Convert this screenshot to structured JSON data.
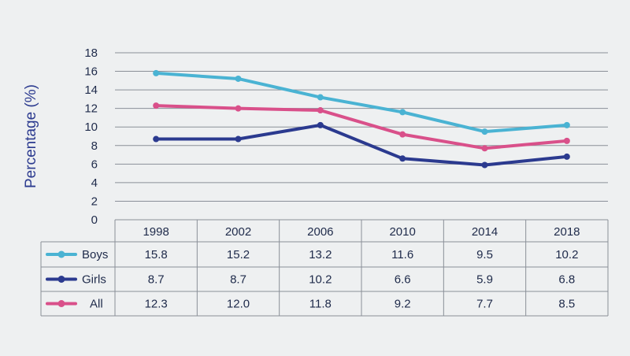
{
  "chart_data": {
    "type": "line",
    "ylabel": "Percentage (%)",
    "ylim": [
      0,
      18
    ],
    "yticks": [
      0,
      2,
      4,
      6,
      8,
      10,
      12,
      14,
      16,
      18
    ],
    "grid": true,
    "categories": [
      "1998",
      "2002",
      "2006",
      "2010",
      "2014",
      "2018"
    ],
    "series": [
      {
        "name": "Boys",
        "color": "#4ab3d3",
        "values": [
          15.8,
          15.2,
          13.2,
          11.6,
          9.5,
          10.2
        ]
      },
      {
        "name": "Girls",
        "color": "#2b3a8f",
        "values": [
          8.7,
          8.7,
          10.2,
          6.6,
          5.9,
          6.8
        ]
      },
      {
        "name": "All",
        "color": "#d9508a",
        "values": [
          12.3,
          12.0,
          11.8,
          9.2,
          7.7,
          8.5
        ]
      }
    ],
    "table_rows": [
      {
        "label": "Boys",
        "cells": [
          "15.8",
          "15.2",
          "13.2",
          "11.6",
          "9.5",
          "10.2"
        ]
      },
      {
        "label": "Girls",
        "cells": [
          "8.7",
          "8.7",
          "10.2",
          "6.6",
          "5.9",
          "6.8"
        ]
      },
      {
        "label": "All",
        "cells": [
          "12.3",
          "12.0",
          "11.8",
          "9.2",
          "7.7",
          "8.5"
        ]
      }
    ]
  }
}
